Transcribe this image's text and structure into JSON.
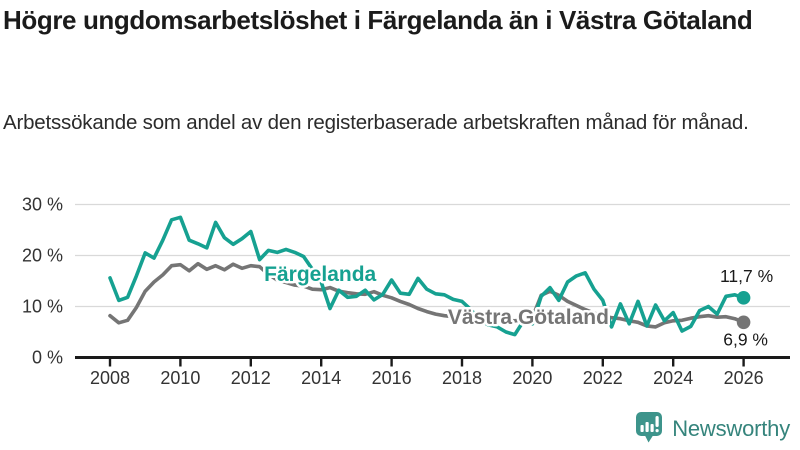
{
  "header": {
    "title": "Högre ungdomsarbetslöshet i Färgelanda än i Västra Götaland",
    "subtitle": "Arbetssökande som andel av den registerbaserade arbetskraften månad för månad."
  },
  "chart_data": {
    "type": "line",
    "title": "Högre ungdomsarbetslöshet i Färgelanda än i Västra Götaland",
    "subtitle": "Arbetssökande som andel av den registerbaserade arbetskraften månad för månad.",
    "xlabel": "",
    "ylabel": "",
    "unit": "%",
    "grid": "horizontal-only",
    "legend_position": "inline-labels-on-lines",
    "xlim": [
      2007.3,
      2027.3
    ],
    "ylim": [
      0,
      32
    ],
    "x_ticks": [
      2008,
      2010,
      2012,
      2014,
      2016,
      2018,
      2020,
      2022,
      2024,
      2026
    ],
    "y_ticks": {
      "values": [
        0,
        10,
        20,
        30
      ],
      "labels": [
        "0 %",
        "10 %",
        "20 %",
        "30 %"
      ]
    },
    "series": [
      {
        "name": "Färgelanda",
        "color": "#16a191",
        "end_label": "11,7 %",
        "end_value": 11.7,
        "label_anchor": {
          "x": 2012.38,
          "y": 15.0
        },
        "end_label_offset": [
          3,
          -16
        ],
        "points": [
          [
            2008.0,
            15.6
          ],
          [
            2008.25,
            11.2
          ],
          [
            2008.5,
            11.8
          ],
          [
            2008.75,
            16.0
          ],
          [
            2009.0,
            20.5
          ],
          [
            2009.25,
            19.5
          ],
          [
            2009.5,
            23.0
          ],
          [
            2009.75,
            27.0
          ],
          [
            2010.0,
            27.5
          ],
          [
            2010.25,
            23.0
          ],
          [
            2010.5,
            22.3
          ],
          [
            2010.75,
            21.5
          ],
          [
            2011.0,
            26.5
          ],
          [
            2011.25,
            23.5
          ],
          [
            2011.5,
            22.2
          ],
          [
            2011.75,
            23.3
          ],
          [
            2012.0,
            24.7
          ],
          [
            2012.25,
            19.2
          ],
          [
            2012.5,
            21.0
          ],
          [
            2012.75,
            20.6
          ],
          [
            2013.0,
            21.2
          ],
          [
            2013.25,
            20.6
          ],
          [
            2013.5,
            19.8
          ],
          [
            2013.75,
            17.3
          ],
          [
            2014.0,
            14.8
          ],
          [
            2014.25,
            9.6
          ],
          [
            2014.5,
            13.2
          ],
          [
            2014.75,
            11.8
          ],
          [
            2015.0,
            12.0
          ],
          [
            2015.25,
            13.2
          ],
          [
            2015.5,
            11.3
          ],
          [
            2015.75,
            12.4
          ],
          [
            2016.0,
            15.2
          ],
          [
            2016.25,
            12.6
          ],
          [
            2016.5,
            12.4
          ],
          [
            2016.75,
            15.5
          ],
          [
            2017.0,
            13.4
          ],
          [
            2017.25,
            12.5
          ],
          [
            2017.5,
            12.3
          ],
          [
            2017.75,
            11.4
          ],
          [
            2018.0,
            11.0
          ],
          [
            2018.25,
            9.4
          ],
          [
            2018.5,
            7.4
          ],
          [
            2018.75,
            6.4
          ],
          [
            2019.0,
            6.0
          ],
          [
            2019.25,
            5.0
          ],
          [
            2019.5,
            4.5
          ],
          [
            2019.75,
            7.2
          ],
          [
            2020.0,
            6.6
          ],
          [
            2020.25,
            12.0
          ],
          [
            2020.5,
            13.7
          ],
          [
            2020.75,
            11.2
          ],
          [
            2021.0,
            14.8
          ],
          [
            2021.25,
            16.0
          ],
          [
            2021.5,
            16.6
          ],
          [
            2021.75,
            13.4
          ],
          [
            2022.0,
            11.2
          ],
          [
            2022.25,
            6.0
          ],
          [
            2022.5,
            10.5
          ],
          [
            2022.75,
            6.6
          ],
          [
            2023.0,
            11.0
          ],
          [
            2023.25,
            6.2
          ],
          [
            2023.5,
            10.3
          ],
          [
            2023.75,
            7.2
          ],
          [
            2024.0,
            8.8
          ],
          [
            2024.25,
            5.2
          ],
          [
            2024.5,
            6.1
          ],
          [
            2024.75,
            9.2
          ],
          [
            2025.0,
            10.0
          ],
          [
            2025.25,
            8.5
          ],
          [
            2025.5,
            12.0
          ],
          [
            2025.75,
            12.3
          ],
          [
            2026.0,
            11.7
          ]
        ]
      },
      {
        "name": "Västra Götaland",
        "color": "#757575",
        "end_label": "6,9 %",
        "end_value": 6.9,
        "label_anchor": {
          "x": 2017.6,
          "y": 6.6
        },
        "end_label_offset": [
          2,
          23
        ],
        "points": [
          [
            2008.0,
            8.2
          ],
          [
            2008.25,
            6.8
          ],
          [
            2008.5,
            7.3
          ],
          [
            2008.75,
            9.8
          ],
          [
            2009.0,
            13.0
          ],
          [
            2009.25,
            14.8
          ],
          [
            2009.5,
            16.2
          ],
          [
            2009.75,
            18.0
          ],
          [
            2010.0,
            18.2
          ],
          [
            2010.25,
            17.0
          ],
          [
            2010.5,
            18.4
          ],
          [
            2010.75,
            17.3
          ],
          [
            2011.0,
            18.0
          ],
          [
            2011.25,
            17.2
          ],
          [
            2011.5,
            18.3
          ],
          [
            2011.75,
            17.5
          ],
          [
            2012.0,
            18.0
          ],
          [
            2012.25,
            17.8
          ],
          [
            2012.5,
            16.3
          ],
          [
            2012.75,
            15.2
          ],
          [
            2013.0,
            14.7
          ],
          [
            2013.25,
            14.2
          ],
          [
            2013.5,
            14.0
          ],
          [
            2013.75,
            13.4
          ],
          [
            2014.0,
            13.3
          ],
          [
            2014.25,
            13.7
          ],
          [
            2014.5,
            13.0
          ],
          [
            2014.75,
            12.7
          ],
          [
            2015.0,
            12.5
          ],
          [
            2015.25,
            12.4
          ],
          [
            2015.5,
            12.9
          ],
          [
            2015.75,
            12.2
          ],
          [
            2016.0,
            11.7
          ],
          [
            2016.25,
            11.0
          ],
          [
            2016.5,
            10.4
          ],
          [
            2016.75,
            9.6
          ],
          [
            2017.0,
            9.0
          ],
          [
            2017.25,
            8.5
          ],
          [
            2017.5,
            8.2
          ],
          [
            2017.75,
            8.0
          ],
          [
            2018.0,
            7.9
          ],
          [
            2018.25,
            7.8
          ],
          [
            2018.5,
            7.7
          ],
          [
            2018.75,
            7.6
          ],
          [
            2019.0,
            7.5
          ],
          [
            2019.25,
            7.3
          ],
          [
            2019.5,
            7.2
          ],
          [
            2019.75,
            7.4
          ],
          [
            2020.0,
            7.8
          ],
          [
            2020.25,
            12.2
          ],
          [
            2020.5,
            13.0
          ],
          [
            2020.75,
            12.2
          ],
          [
            2021.0,
            11.0
          ],
          [
            2021.25,
            10.2
          ],
          [
            2021.5,
            9.4
          ],
          [
            2021.75,
            8.7
          ],
          [
            2022.0,
            8.2
          ],
          [
            2022.25,
            7.8
          ],
          [
            2022.5,
            7.6
          ],
          [
            2022.75,
            7.2
          ],
          [
            2023.0,
            6.9
          ],
          [
            2023.25,
            6.2
          ],
          [
            2023.5,
            6.0
          ],
          [
            2023.75,
            6.8
          ],
          [
            2024.0,
            7.2
          ],
          [
            2024.25,
            7.3
          ],
          [
            2024.5,
            7.7
          ],
          [
            2024.75,
            8.0
          ],
          [
            2025.0,
            8.2
          ],
          [
            2025.25,
            7.9
          ],
          [
            2025.5,
            8.0
          ],
          [
            2025.75,
            7.6
          ],
          [
            2026.0,
            6.9
          ]
        ]
      }
    ]
  },
  "style_colors": {
    "accent_teal": "#16a191",
    "series_gray": "#757575",
    "gridline": "#d9d9d9",
    "axis_line": "#1a1a1a",
    "tick_text": "#333333",
    "logo_icon_teal": "#3d948b",
    "logo_text_teal": "#35847c"
  },
  "logo": {
    "text": "Newsworthy",
    "icon": "newsworthy-bar-chart-bubble-icon"
  }
}
